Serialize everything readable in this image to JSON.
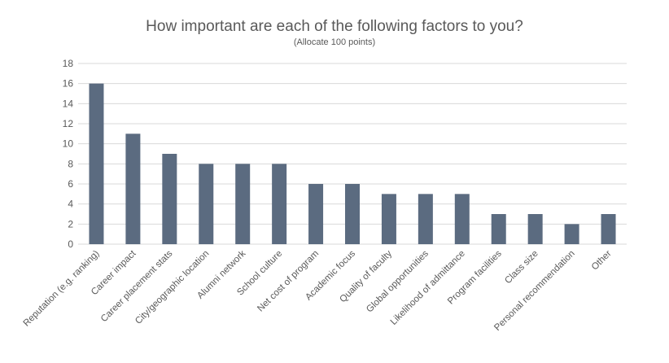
{
  "chart_data": {
    "type": "bar",
    "title": "How important are each of the following factors to you?",
    "subtitle": "(Allocate 100 points)",
    "categories": [
      "Reputation (e.g. ranking)",
      "Career impact",
      "Career placement stats",
      "City/geographic location",
      "Alumni network",
      "School culture",
      "Net cost of program",
      "Academic focus",
      "Quality of faculty",
      "Global opportunities",
      "Likelihood of admittance",
      "Program facilities",
      "Class size",
      "Personal recommendation",
      "Other"
    ],
    "values": [
      16,
      11,
      9,
      8,
      8,
      8,
      6,
      6,
      5,
      5,
      5,
      3,
      3,
      2,
      3
    ],
    "ylim": [
      0,
      18
    ],
    "yticks": [
      0,
      2,
      4,
      6,
      8,
      10,
      12,
      14,
      16,
      18
    ],
    "grid": true,
    "bar_color": "#5b6b80",
    "grid_color": "#d9d9d9"
  }
}
